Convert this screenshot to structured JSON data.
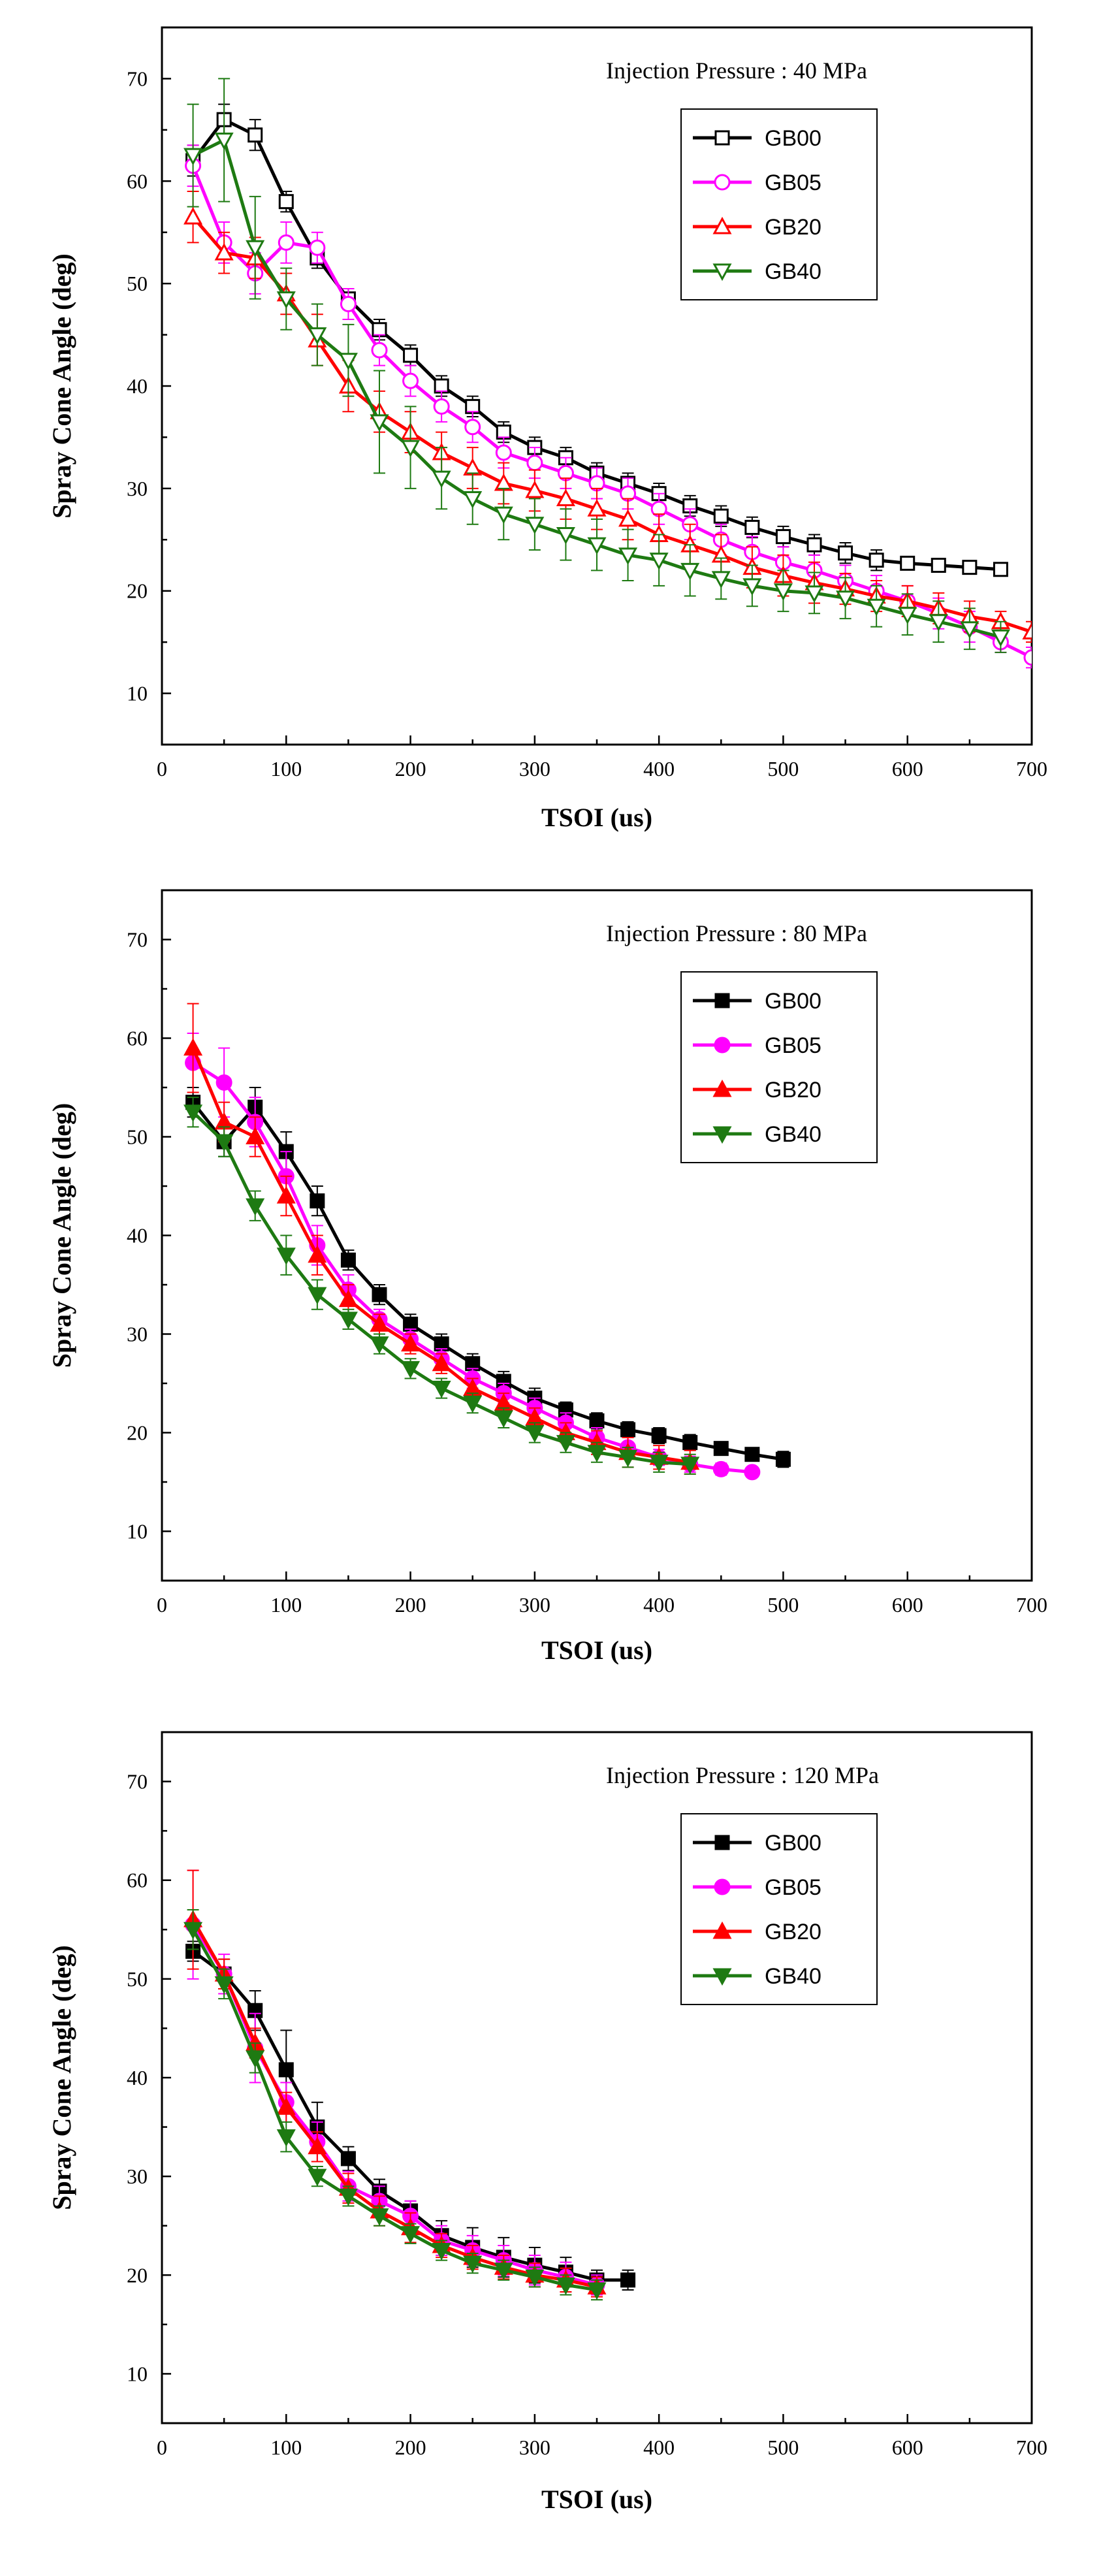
{
  "chart_data": [
    {
      "type": "line",
      "annotation": "Injection Pressure : 40 MPa",
      "xlabel": "TSOI (us)",
      "ylabel": "Spray Cone Angle (deg)",
      "xlim": [
        0,
        700
      ],
      "ylim": [
        5,
        75
      ],
      "xticks": [
        0,
        100,
        200,
        300,
        400,
        500,
        600,
        700
      ],
      "yticks": [
        10,
        20,
        30,
        40,
        50,
        60,
        70
      ],
      "legend_position": "top-right",
      "series": [
        {
          "name": "GB00",
          "color": "#000000",
          "marker": "square",
          "filled": false,
          "x": [
            25,
            50,
            75,
            100,
            125,
            150,
            175,
            200,
            225,
            250,
            275,
            300,
            325,
            350,
            375,
            400,
            425,
            450,
            475,
            500,
            525,
            550,
            575,
            600,
            625,
            650,
            675
          ],
          "y": [
            62,
            66,
            64.5,
            58,
            52.5,
            48.5,
            45.5,
            43,
            40,
            38,
            35.5,
            34,
            33,
            31.5,
            30.5,
            29.5,
            28.3,
            27.3,
            26.2,
            25.3,
            24.5,
            23.7,
            23,
            22.7,
            22.5,
            22.3,
            22.1
          ],
          "err": [
            1.5,
            1.5,
            1.5,
            1,
            1,
            1,
            1,
            1,
            1,
            1,
            1,
            1,
            1,
            1,
            1,
            1,
            1,
            1,
            1,
            1,
            1,
            1,
            1,
            0.5,
            0.5,
            0.5,
            0.5
          ]
        },
        {
          "name": "GB05",
          "color": "#ff00ff",
          "marker": "circle",
          "filled": false,
          "x": [
            25,
            50,
            75,
            100,
            125,
            150,
            175,
            200,
            225,
            250,
            275,
            300,
            325,
            350,
            375,
            400,
            425,
            450,
            475,
            500,
            525,
            550,
            575,
            600,
            625,
            650,
            675,
            700
          ],
          "y": [
            61.5,
            54,
            51,
            54,
            53.5,
            48,
            43.5,
            40.5,
            38,
            36,
            33.5,
            32.5,
            31.5,
            30.5,
            29.5,
            28,
            26.5,
            25,
            23.8,
            22.8,
            22,
            21,
            20,
            19,
            17.8,
            16.5,
            15,
            13.5
          ],
          "err": [
            2,
            2,
            2,
            2,
            1.5,
            1.5,
            1.5,
            1.5,
            1.5,
            1.5,
            1.5,
            1.5,
            1.5,
            1.5,
            1.5,
            1.5,
            1.5,
            1.5,
            1.5,
            1.5,
            1.5,
            1.5,
            1.5,
            1.5,
            1.5,
            1.5,
            1,
            1
          ]
        },
        {
          "name": "GB20",
          "color": "#ff0000",
          "marker": "triangle-up",
          "filled": false,
          "x": [
            25,
            50,
            75,
            100,
            125,
            150,
            175,
            200,
            225,
            250,
            275,
            300,
            325,
            350,
            375,
            400,
            425,
            450,
            475,
            500,
            525,
            550,
            575,
            600,
            625,
            650,
            675,
            700
          ],
          "y": [
            56.5,
            53,
            52.5,
            49,
            44.5,
            40,
            37.5,
            35.5,
            33.5,
            32,
            30.5,
            29.8,
            29,
            28,
            27,
            25.5,
            24.5,
            23.5,
            22.3,
            21.5,
            20.8,
            20.2,
            19.5,
            19,
            18.3,
            17.5,
            17,
            16
          ],
          "err": [
            2.5,
            2,
            2,
            2,
            2.5,
            2.5,
            2,
            2,
            2,
            2,
            2,
            2,
            2,
            2,
            2,
            2,
            2,
            2,
            2,
            2,
            2,
            1.5,
            1.5,
            1.5,
            1.5,
            1.5,
            1,
            1
          ]
        },
        {
          "name": "GB40",
          "color": "#1e7a12",
          "marker": "triangle-down",
          "filled": false,
          "x": [
            25,
            50,
            75,
            100,
            125,
            150,
            175,
            200,
            225,
            250,
            275,
            300,
            325,
            350,
            375,
            400,
            425,
            450,
            475,
            500,
            525,
            550,
            575,
            600,
            625,
            650,
            675
          ],
          "y": [
            62.5,
            64,
            53.5,
            48.5,
            45,
            42.5,
            36.5,
            34,
            31,
            29,
            27.5,
            26.5,
            25.5,
            24.5,
            23.5,
            23,
            22,
            21.2,
            20.5,
            20,
            19.8,
            19.3,
            18.5,
            17.7,
            17,
            16.3,
            15.5
          ],
          "err": [
            5,
            6,
            5,
            3,
            3,
            3.5,
            5,
            4,
            3,
            2.5,
            2.5,
            2.5,
            2.5,
            2.5,
            2.5,
            2.5,
            2.5,
            2,
            2,
            2,
            2,
            2,
            2,
            2,
            2,
            2,
            1.5
          ]
        }
      ]
    },
    {
      "type": "line",
      "annotation": "Injection Pressure : 80 MPa",
      "xlabel": "TSOI (us)",
      "ylabel": "Spray Cone Angle (deg)",
      "xlim": [
        0,
        700
      ],
      "ylim": [
        5,
        75
      ],
      "xticks": [
        0,
        100,
        200,
        300,
        400,
        500,
        600,
        700
      ],
      "yticks": [
        10,
        20,
        30,
        40,
        50,
        60,
        70
      ],
      "legend_position": "top-right",
      "series": [
        {
          "name": "GB00",
          "color": "#000000",
          "marker": "square",
          "filled": true,
          "x": [
            25,
            50,
            75,
            100,
            125,
            150,
            175,
            200,
            225,
            250,
            275,
            300,
            325,
            350,
            375,
            400,
            425,
            450,
            475,
            500
          ],
          "y": [
            53.5,
            49.5,
            53,
            48.5,
            43.5,
            37.5,
            34,
            31,
            29,
            27,
            25.2,
            23.5,
            22.3,
            21.2,
            20.3,
            19.7,
            19,
            18.4,
            17.8,
            17.3
          ],
          "err": [
            1.5,
            1.5,
            2,
            2,
            1.5,
            1,
            1,
            1,
            1,
            1,
            1,
            1,
            0.8,
            0.8,
            0.8,
            0.8,
            0.8,
            0.6,
            0.6,
            0.8
          ]
        },
        {
          "name": "GB05",
          "color": "#ff00ff",
          "marker": "circle",
          "filled": true,
          "x": [
            25,
            50,
            75,
            100,
            125,
            150,
            175,
            200,
            225,
            250,
            275,
            300,
            325,
            350,
            375,
            400,
            425,
            450,
            475
          ],
          "y": [
            57.5,
            55.5,
            51.5,
            46,
            39,
            34.5,
            31.5,
            29.5,
            27.5,
            25.5,
            24,
            22.5,
            21,
            19.5,
            18.5,
            17.5,
            16.8,
            16.3,
            16
          ],
          "err": [
            3,
            3.5,
            2.5,
            2.5,
            2,
            1.5,
            1,
            1,
            1,
            1,
            1,
            1,
            1,
            1,
            1,
            0.8,
            0.8,
            0.6,
            0.5
          ]
        },
        {
          "name": "GB20",
          "color": "#ff0000",
          "marker": "triangle-up",
          "filled": true,
          "x": [
            25,
            50,
            75,
            100,
            125,
            150,
            175,
            200,
            225,
            250,
            275,
            300,
            325,
            350,
            375,
            400,
            425
          ],
          "y": [
            59,
            51.5,
            50,
            44,
            38,
            33.5,
            31,
            29,
            27,
            24.5,
            23,
            21.5,
            20,
            19,
            18,
            17.5,
            17
          ],
          "err": [
            4.5,
            2,
            2,
            2,
            2,
            1.5,
            1,
            1,
            1,
            1,
            1,
            1,
            1,
            1.2,
            1.5,
            1.2,
            1.2
          ]
        },
        {
          "name": "GB40",
          "color": "#1e7a12",
          "marker": "triangle-down",
          "filled": true,
          "x": [
            25,
            50,
            75,
            100,
            125,
            150,
            175,
            200,
            225,
            250,
            275,
            300,
            325,
            350,
            375,
            400,
            425
          ],
          "y": [
            52.5,
            49.5,
            43,
            38,
            34,
            31.5,
            29,
            26.5,
            24.5,
            23,
            21.5,
            20,
            19,
            18,
            17.5,
            17,
            16.8
          ],
          "err": [
            1.5,
            1.5,
            1.5,
            2,
            1.5,
            1,
            1,
            1,
            1,
            1,
            1,
            1,
            1,
            1,
            1,
            1,
            1
          ]
        }
      ]
    },
    {
      "type": "line",
      "annotation": "Injection Pressure : 120 MPa",
      "xlabel": "TSOI (us)",
      "ylabel": "Spray Cone Angle (deg)",
      "xlim": [
        0,
        700
      ],
      "ylim": [
        5,
        75
      ],
      "xticks": [
        0,
        100,
        200,
        300,
        400,
        500,
        600,
        700
      ],
      "yticks": [
        10,
        20,
        30,
        40,
        50,
        60,
        70
      ],
      "legend_position": "top-right",
      "series": [
        {
          "name": "GB00",
          "color": "#000000",
          "marker": "square",
          "filled": true,
          "x": [
            25,
            50,
            75,
            100,
            125,
            150,
            175,
            200,
            225,
            250,
            275,
            300,
            325,
            350,
            375
          ],
          "y": [
            52.8,
            50.5,
            46.8,
            40.8,
            35,
            31.8,
            28.5,
            26.5,
            24,
            22.8,
            21.8,
            21,
            20.3,
            19.5,
            19.5
          ],
          "err": [
            1,
            1.5,
            2,
            4,
            2.5,
            1.2,
            1.2,
            1,
            1.5,
            2,
            2,
            1.8,
            1.5,
            1,
            1
          ]
        },
        {
          "name": "GB05",
          "color": "#ff00ff",
          "marker": "circle",
          "filled": true,
          "x": [
            25,
            50,
            75,
            100,
            125,
            150,
            175,
            200,
            225,
            250,
            275,
            300,
            325,
            350
          ],
          "y": [
            55.5,
            50.5,
            43,
            37.5,
            33.5,
            29,
            27.5,
            26,
            23.5,
            22.5,
            21.5,
            20.5,
            19.8,
            19
          ],
          "err": [
            5.5,
            2,
            3.5,
            2,
            2,
            1.5,
            1.5,
            1.5,
            1.5,
            1.5,
            1.5,
            1.5,
            1.5,
            1
          ]
        },
        {
          "name": "GB20",
          "color": "#ff0000",
          "marker": "triangle-up",
          "filled": true,
          "x": [
            25,
            50,
            75,
            100,
            125,
            150,
            175,
            200,
            225,
            250,
            275,
            300,
            325,
            350
          ],
          "y": [
            56,
            50.5,
            43.5,
            37,
            33,
            28.8,
            26.5,
            24.8,
            23,
            21.8,
            20.8,
            20,
            19.5,
            18.8
          ],
          "err": [
            5,
            1.5,
            1.5,
            1.5,
            1.5,
            1.5,
            1.5,
            1.5,
            1.2,
            1.2,
            1.2,
            1.2,
            1.2,
            1
          ]
        },
        {
          "name": "GB40",
          "color": "#1e7a12",
          "marker": "triangle-down",
          "filled": true,
          "x": [
            25,
            50,
            75,
            100,
            125,
            150,
            175,
            200,
            225,
            250,
            275,
            300,
            325,
            350
          ],
          "y": [
            55,
            49.5,
            42,
            34,
            30,
            28,
            26,
            24.2,
            22.5,
            21.2,
            20.5,
            19.8,
            19,
            18.5
          ],
          "err": [
            2,
            1.5,
            1.5,
            1.5,
            1,
            1,
            1,
            1,
            1,
            1,
            1,
            1,
            1,
            1
          ]
        }
      ]
    }
  ]
}
